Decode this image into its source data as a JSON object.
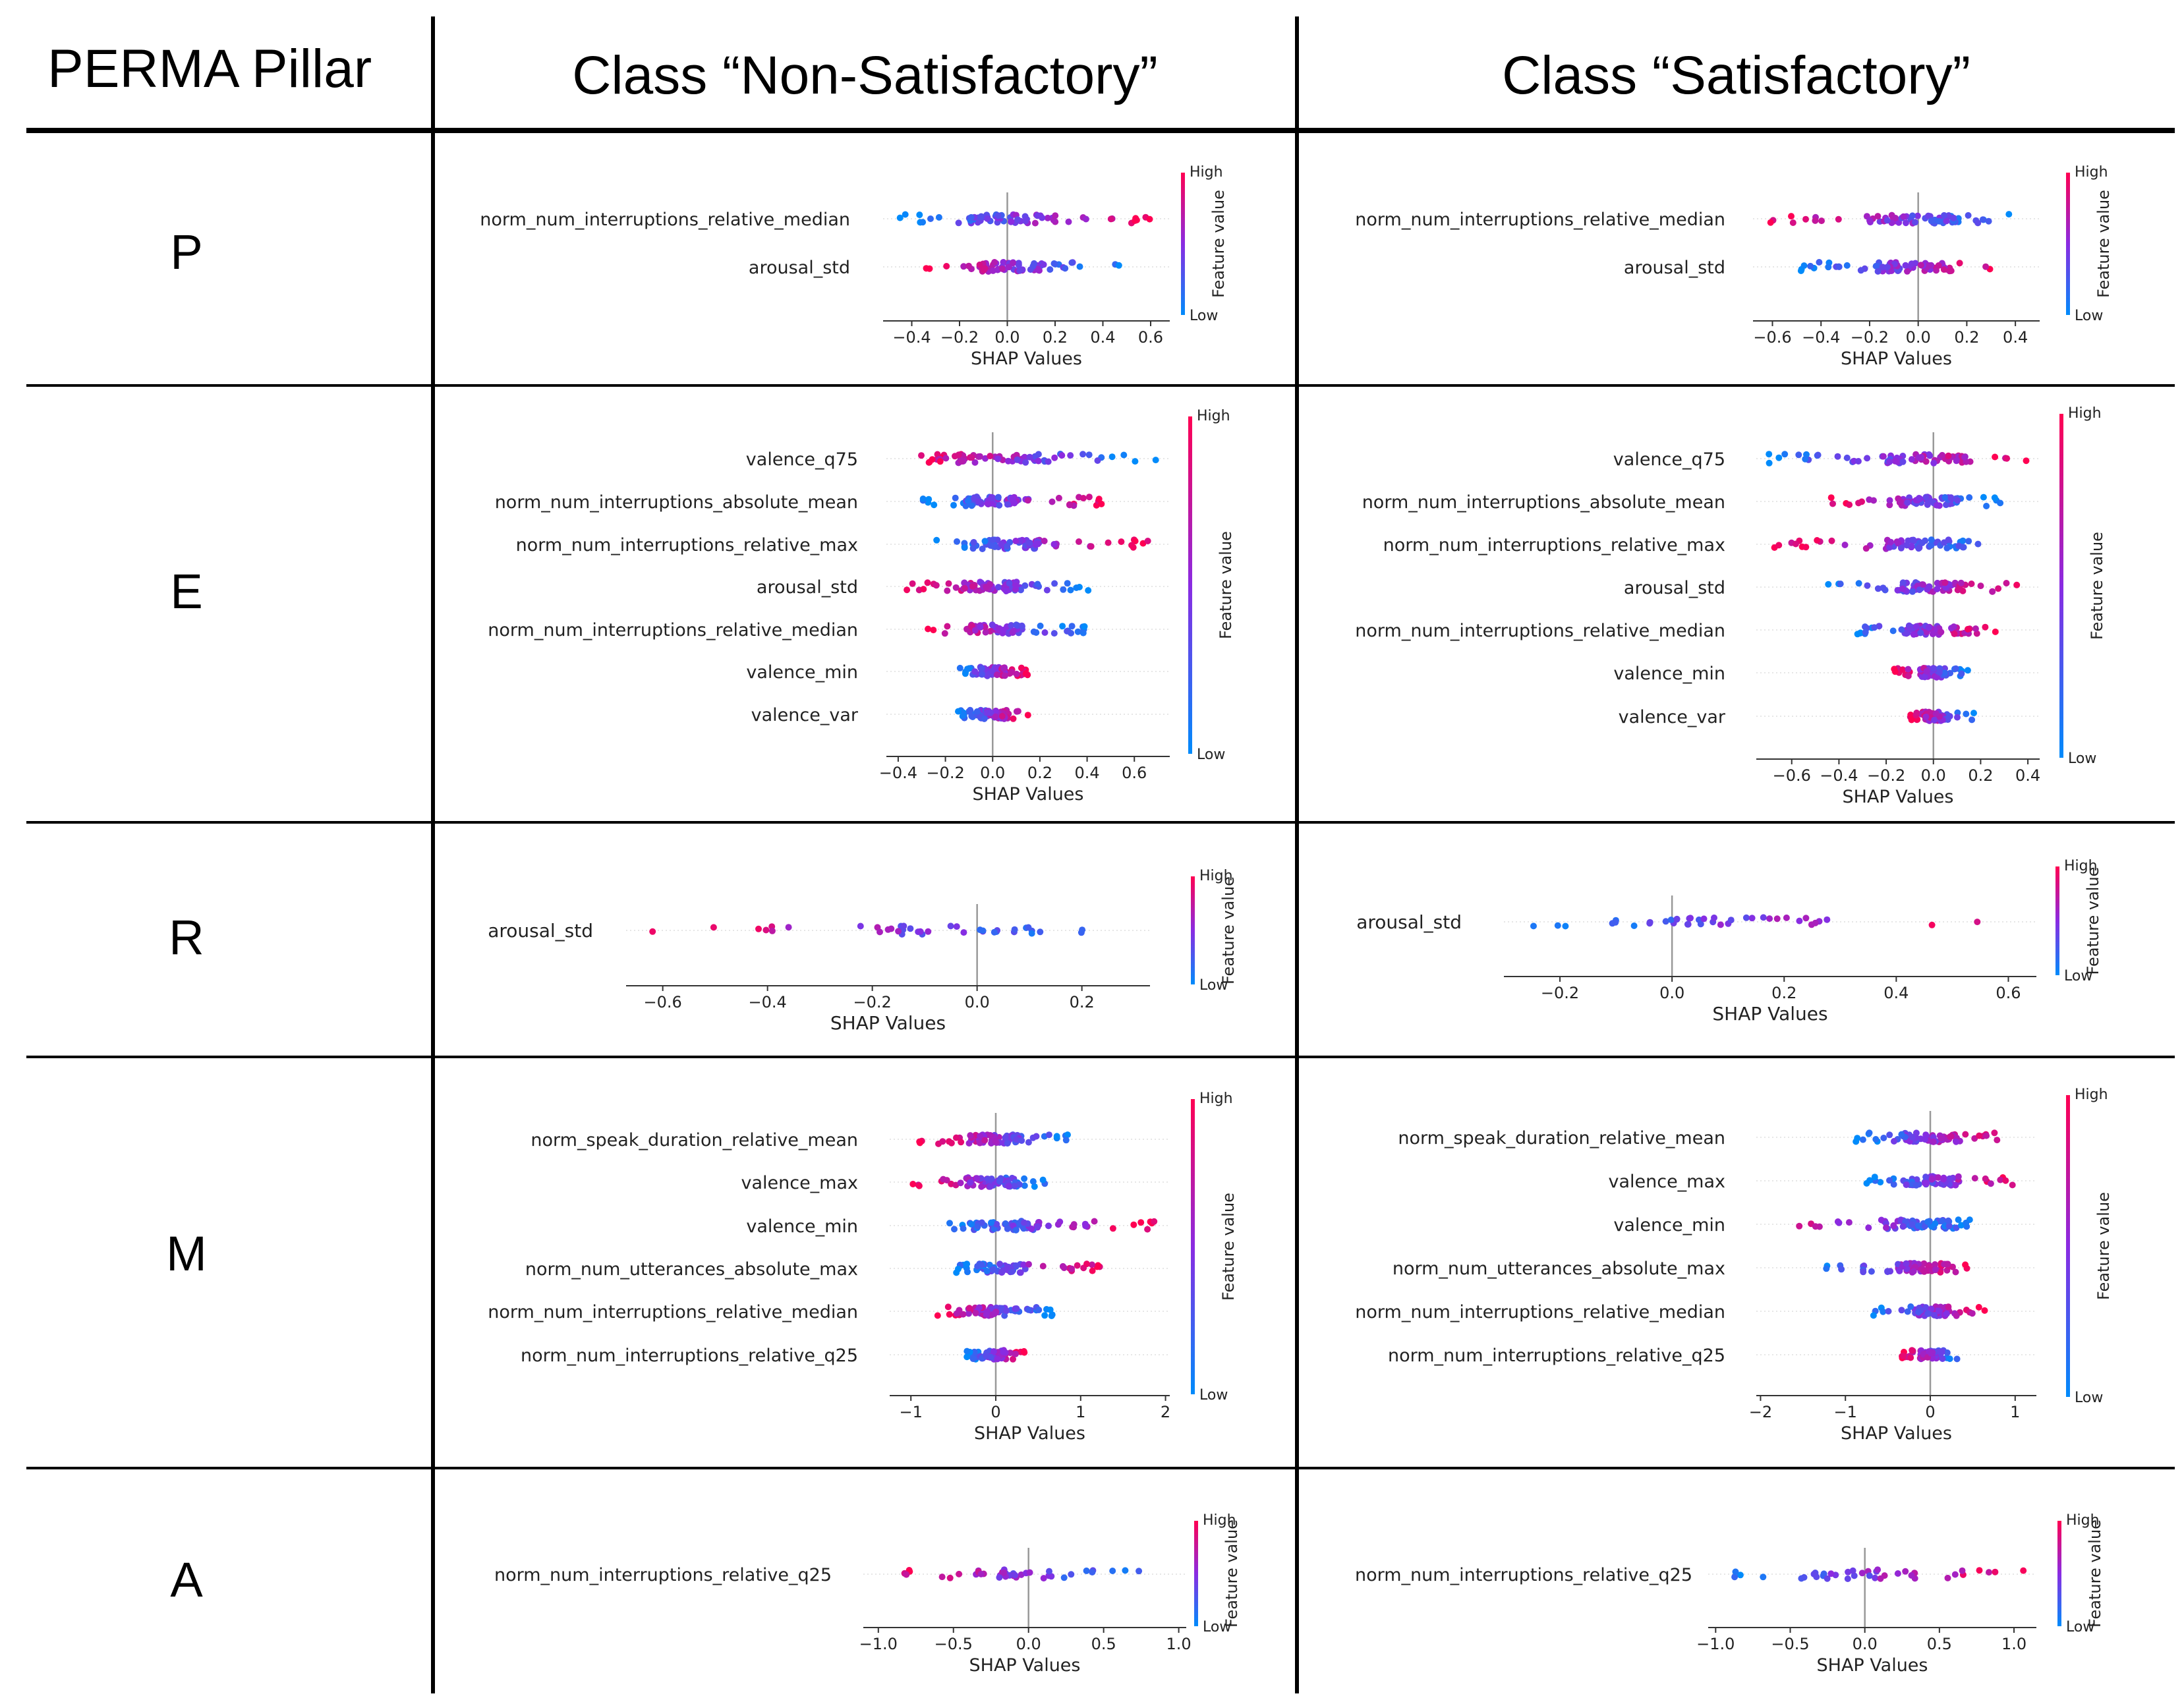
{
  "headers": {
    "pillar": "PERMA Pillar",
    "non_satisfactory": "Class “Non-Satisfactory”",
    "satisfactory": "Class “Satisfactory”"
  },
  "pillars": [
    "P",
    "E",
    "R",
    "M",
    "A"
  ],
  "colorbar": {
    "high": "High",
    "low": "Low",
    "label": "Feature value",
    "color_high": "#ff0052",
    "color_mid": "#8a2be2",
    "color_low": "#008bfb"
  },
  "chart_data": [
    {
      "type": "scatter",
      "pillar": "P",
      "class": "Non-Satisfactory",
      "xlabel": "SHAP Values",
      "xlim": [
        -0.52,
        0.68
      ],
      "ticks": [
        -0.4,
        -0.2,
        0.0,
        0.2,
        0.4,
        0.6
      ],
      "tick_labels": [
        "−0.4",
        "−0.2",
        "0.0",
        "0.2",
        "0.4",
        "0.6"
      ],
      "features": [
        "norm_num_interruptions_relative_median",
        "arousal_std"
      ]
    },
    {
      "type": "scatter",
      "pillar": "P",
      "class": "Satisfactory",
      "xlabel": "SHAP Values",
      "xlim": [
        -0.68,
        0.5
      ],
      "ticks": [
        -0.6,
        -0.4,
        -0.2,
        0.0,
        0.2,
        0.4
      ],
      "tick_labels": [
        "−0.6",
        "−0.4",
        "−0.2",
        "0.0",
        "0.2",
        "0.4"
      ],
      "features": [
        "norm_num_interruptions_relative_median",
        "arousal_std"
      ]
    },
    {
      "type": "scatter",
      "pillar": "E",
      "class": "Non-Satisfactory",
      "xlabel": "SHAP Values",
      "xlim": [
        -0.45,
        0.75
      ],
      "ticks": [
        -0.4,
        -0.2,
        0.0,
        0.2,
        0.4,
        0.6
      ],
      "tick_labels": [
        "−0.4",
        "−0.2",
        "0.0",
        "0.2",
        "0.4",
        "0.6"
      ],
      "features": [
        "valence_q75",
        "norm_num_interruptions_absolute_mean",
        "norm_num_interruptions_relative_max",
        "arousal_std",
        "norm_num_interruptions_relative_median",
        "valence_min",
        "valence_var"
      ]
    },
    {
      "type": "scatter",
      "pillar": "E",
      "class": "Satisfactory",
      "xlabel": "SHAP Values",
      "xlim": [
        -0.75,
        0.45
      ],
      "ticks": [
        -0.6,
        -0.4,
        -0.2,
        0.0,
        0.2,
        0.4
      ],
      "tick_labels": [
        "−0.6",
        "−0.4",
        "−0.2",
        "0.0",
        "0.2",
        "0.4"
      ],
      "features": [
        "valence_q75",
        "norm_num_interruptions_absolute_mean",
        "norm_num_interruptions_relative_max",
        "arousal_std",
        "norm_num_interruptions_relative_median",
        "valence_min",
        "valence_var"
      ]
    },
    {
      "type": "scatter",
      "pillar": "R",
      "class": "Non-Satisfactory",
      "xlabel": "SHAP Values",
      "xlim": [
        -0.67,
        0.33
      ],
      "ticks": [
        -0.6,
        -0.4,
        -0.2,
        0.0,
        0.2
      ],
      "tick_labels": [
        "−0.6",
        "−0.4",
        "−0.2",
        "0.0",
        "0.2"
      ],
      "features": [
        "arousal_std"
      ]
    },
    {
      "type": "scatter",
      "pillar": "R",
      "class": "Satisfactory",
      "xlabel": "SHAP Values",
      "xlim": [
        -0.3,
        0.65
      ],
      "ticks": [
        -0.2,
        0.0,
        0.2,
        0.4,
        0.6
      ],
      "tick_labels": [
        "−0.2",
        "0.0",
        "0.2",
        "0.4",
        "0.6"
      ],
      "features": [
        "arousal_std"
      ]
    },
    {
      "type": "scatter",
      "pillar": "M",
      "class": "Non-Satisfactory",
      "xlabel": "SHAP Values",
      "xlim": [
        -1.25,
        2.05
      ],
      "ticks": [
        -1,
        0,
        1,
        2
      ],
      "tick_labels": [
        "−1",
        "0",
        "1",
        "2"
      ],
      "features": [
        "norm_speak_duration_relative_mean",
        "valence_max",
        "valence_min",
        "norm_num_utterances_absolute_max",
        "norm_num_interruptions_relative_median",
        "norm_num_interruptions_relative_q25"
      ]
    },
    {
      "type": "scatter",
      "pillar": "M",
      "class": "Satisfactory",
      "xlabel": "SHAP Values",
      "xlim": [
        -2.05,
        1.25
      ],
      "ticks": [
        -2,
        -1,
        0,
        1
      ],
      "tick_labels": [
        "−2",
        "−1",
        "0",
        "1"
      ],
      "features": [
        "norm_speak_duration_relative_mean",
        "valence_max",
        "valence_min",
        "norm_num_utterances_absolute_max",
        "norm_num_interruptions_relative_median",
        "norm_num_interruptions_relative_q25"
      ]
    },
    {
      "type": "scatter",
      "pillar": "A",
      "class": "Non-Satisfactory",
      "xlabel": "SHAP Values",
      "xlim": [
        -1.1,
        1.05
      ],
      "ticks": [
        -1.0,
        -0.5,
        0.0,
        0.5,
        1.0
      ],
      "tick_labels": [
        "−1.0",
        "−0.5",
        "0.0",
        "0.5",
        "1.0"
      ],
      "features": [
        "norm_num_interruptions_relative_q25"
      ]
    },
    {
      "type": "scatter",
      "pillar": "A",
      "class": "Satisfactory",
      "xlabel": "SHAP Values",
      "xlim": [
        -1.05,
        1.15
      ],
      "ticks": [
        -1.0,
        -0.5,
        0.0,
        0.5,
        1.0
      ],
      "tick_labels": [
        "−1.0",
        "−0.5",
        "0.0",
        "0.5",
        "1.0"
      ],
      "features": [
        "norm_num_interruptions_relative_q25"
      ]
    }
  ]
}
